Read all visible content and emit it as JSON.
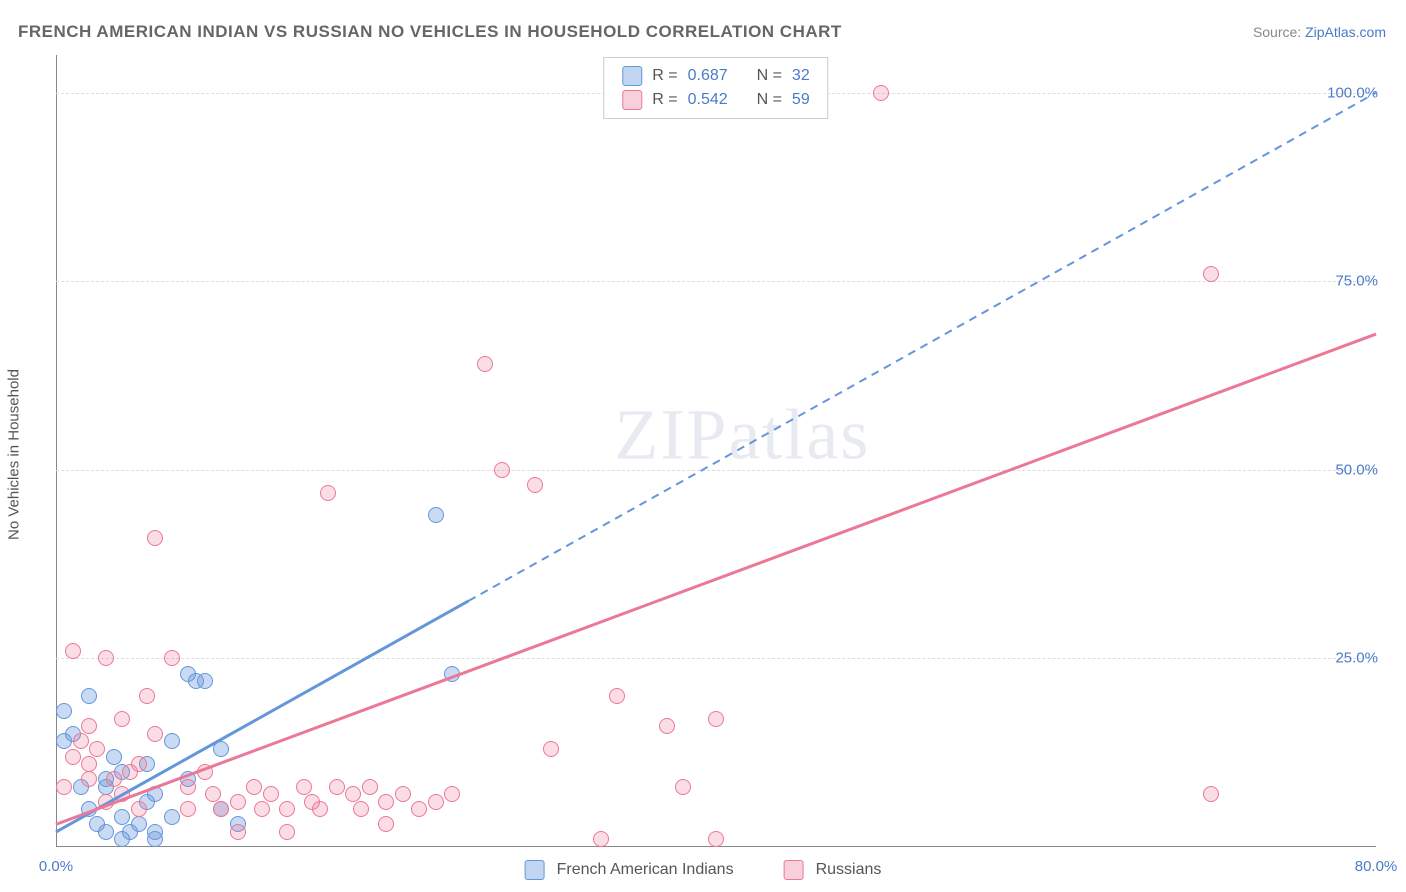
{
  "title": "FRENCH AMERICAN INDIAN VS RUSSIAN NO VEHICLES IN HOUSEHOLD CORRELATION CHART",
  "source": {
    "prefix": "Source:",
    "link": "ZipAtlas.com"
  },
  "chart": {
    "type": "scatter",
    "ylabel": "No Vehicles in Household",
    "xlim": [
      0,
      80
    ],
    "ylim": [
      0,
      105
    ],
    "x_ticks": [
      {
        "v": 0,
        "l": "0.0%"
      },
      {
        "v": 80,
        "l": "80.0%"
      }
    ],
    "y_ticks": [
      {
        "v": 25,
        "l": "25.0%"
      },
      {
        "v": 50,
        "l": "50.0%"
      },
      {
        "v": 75,
        "l": "75.0%"
      },
      {
        "v": 100,
        "l": "100.0%"
      }
    ],
    "grid_y": [
      25,
      50,
      75,
      100
    ],
    "grid_color": "#dddddd",
    "background_color": "#ffffff",
    "point_radius": 8,
    "series": [
      {
        "label": "French American Indians",
        "color": "#6496dc",
        "fill": "rgba(100,150,220,0.35)",
        "r": "0.687",
        "n": "32",
        "trend": {
          "x1": 0,
          "y1": 2,
          "x2": 80,
          "y2": 100,
          "solid_until_x": 25
        },
        "points": [
          [
            0.5,
            14
          ],
          [
            0.5,
            18
          ],
          [
            1,
            15
          ],
          [
            1.5,
            8
          ],
          [
            2,
            20
          ],
          [
            2,
            5
          ],
          [
            2.5,
            3
          ],
          [
            3,
            2
          ],
          [
            3,
            9
          ],
          [
            3,
            8
          ],
          [
            3.5,
            12
          ],
          [
            4,
            4
          ],
          [
            4,
            10
          ],
          [
            4.5,
            2
          ],
          [
            5,
            3
          ],
          [
            5.5,
            6
          ],
          [
            5.5,
            11
          ],
          [
            6,
            7
          ],
          [
            6,
            2
          ],
          [
            7,
            14
          ],
          [
            7,
            4
          ],
          [
            8,
            23
          ],
          [
            8,
            9
          ],
          [
            8.5,
            22
          ],
          [
            9,
            22
          ],
          [
            10,
            5
          ],
          [
            10,
            13
          ],
          [
            11,
            3
          ],
          [
            23,
            44
          ],
          [
            24,
            23
          ],
          [
            4,
            1
          ],
          [
            6,
            1
          ]
        ]
      },
      {
        "label": "Russians",
        "color": "#eb7896",
        "fill": "rgba(235,120,150,0.25)",
        "r": "0.542",
        "n": "59",
        "trend": {
          "x1": 0,
          "y1": 3,
          "x2": 80,
          "y2": 68,
          "solid_until_x": 80
        },
        "points": [
          [
            0.5,
            8
          ],
          [
            1,
            26
          ],
          [
            1,
            12
          ],
          [
            1.5,
            14
          ],
          [
            2,
            16
          ],
          [
            2,
            9
          ],
          [
            2,
            11
          ],
          [
            2.5,
            13
          ],
          [
            3,
            25
          ],
          [
            3,
            6
          ],
          [
            3.5,
            9
          ],
          [
            4,
            17
          ],
          [
            4,
            7
          ],
          [
            4.5,
            10
          ],
          [
            5,
            11
          ],
          [
            5,
            5
          ],
          [
            5.5,
            20
          ],
          [
            6,
            15
          ],
          [
            6,
            41
          ],
          [
            7,
            25
          ],
          [
            8,
            8
          ],
          [
            8,
            5
          ],
          [
            9,
            10
          ],
          [
            9.5,
            7
          ],
          [
            10,
            5
          ],
          [
            11,
            6
          ],
          [
            12,
            8
          ],
          [
            12.5,
            5
          ],
          [
            13,
            7
          ],
          [
            14,
            5
          ],
          [
            15,
            8
          ],
          [
            15.5,
            6
          ],
          [
            16,
            5
          ],
          [
            16.5,
            47
          ],
          [
            17,
            8
          ],
          [
            18,
            7
          ],
          [
            18.5,
            5
          ],
          [
            19,
            8
          ],
          [
            20,
            6
          ],
          [
            21,
            7
          ],
          [
            22,
            5
          ],
          [
            23,
            6
          ],
          [
            24,
            7
          ],
          [
            26,
            64
          ],
          [
            27,
            50
          ],
          [
            29,
            48
          ],
          [
            30,
            13
          ],
          [
            33,
            1
          ],
          [
            34,
            20
          ],
          [
            37,
            16
          ],
          [
            38,
            8
          ],
          [
            40,
            17
          ],
          [
            40,
            1
          ],
          [
            50,
            100
          ],
          [
            70,
            76
          ],
          [
            70,
            7
          ],
          [
            14,
            2
          ],
          [
            20,
            3
          ],
          [
            11,
            2
          ]
        ]
      }
    ]
  }
}
